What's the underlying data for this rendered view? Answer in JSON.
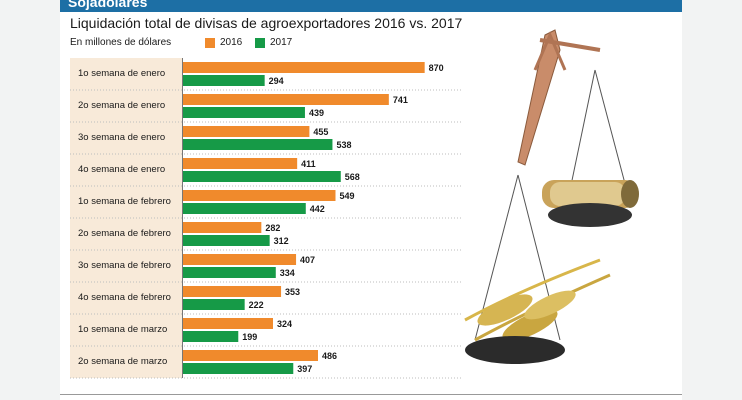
{
  "header": {
    "section_label": "Sojadólares"
  },
  "colors": {
    "series_2016": "#f08a2c",
    "series_2017": "#169a47",
    "banner": "#1d6fa5",
    "label_bg": "#f8ead9"
  },
  "illustration": {
    "icon": "balance-scale-with-money-and-wheat"
  },
  "chart_data": {
    "type": "bar",
    "orientation": "horizontal",
    "title": "Liquidación total de divisas de agroexportadores 2016 vs. 2017",
    "subtitle": "En millones de dólares",
    "categories": [
      "1o semana de enero",
      "2o semana de enero",
      "3o semana de enero",
      "4o semana de enero",
      "1o semana de febrero",
      "2o semana de febrero",
      "3o semana de febrero",
      "4o semana de febrero",
      "1o semana de marzo",
      "2o semana de marzo"
    ],
    "series": [
      {
        "name": "2016",
        "values": [
          870,
          741,
          455,
          411,
          549,
          282,
          407,
          353,
          324,
          486
        ]
      },
      {
        "name": "2017",
        "values": [
          294,
          439,
          538,
          568,
          442,
          312,
          334,
          222,
          199,
          397
        ]
      }
    ],
    "xlim": [
      0,
      900
    ],
    "legend_position": "top",
    "grid": false
  }
}
